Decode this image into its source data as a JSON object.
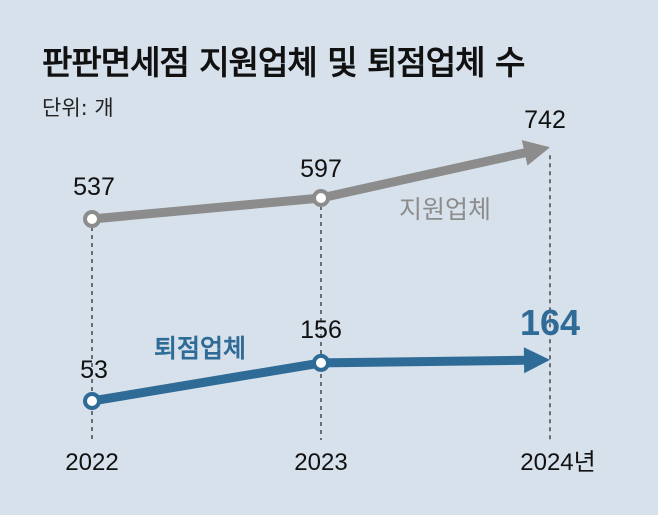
{
  "chart_data": {
    "type": "line",
    "title": "판판면세점 지원업체 및 퇴점업체 수",
    "unit_label": "단위: 개",
    "categories": [
      "2022",
      "2023",
      "2024년"
    ],
    "series": [
      {
        "name": "지원업체",
        "values": [
          537,
          597,
          742
        ],
        "color": "#8c8c8c"
      },
      {
        "name": "퇴점업체",
        "values": [
          53,
          156,
          164
        ],
        "color": "#2f6b97"
      }
    ],
    "grid": false,
    "legend": "inline labels"
  }
}
